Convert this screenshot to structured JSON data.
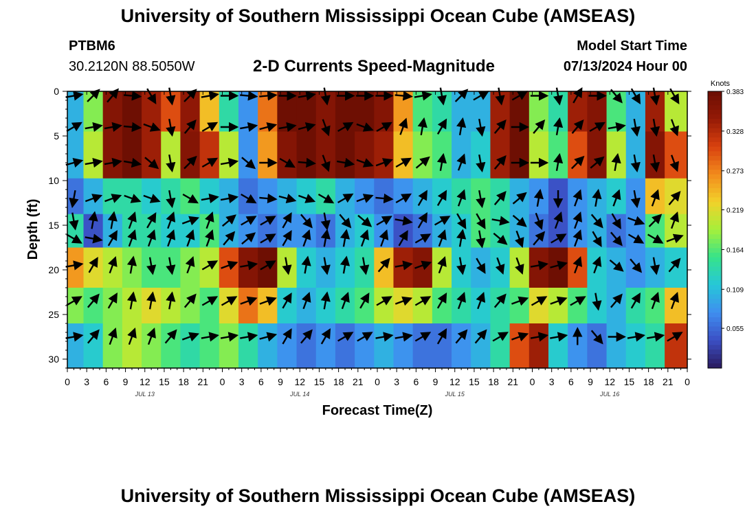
{
  "header": {
    "title": "University of Southern Mississippi Ocean Cube (AMSEAS)",
    "station_id": "PTBM6",
    "station_coords": "30.2120N  88.5050W",
    "subtitle": "2-D Currents Speed-Magnitude",
    "model_start_label": "Model Start Time",
    "model_start_value": "07/13/2024 Hour 00"
  },
  "footer": {
    "title": "University of Southern Mississippi Ocean Cube (AMSEAS)"
  },
  "chart_data": {
    "type": "heatmap",
    "title": "2-D Currents Speed-Magnitude",
    "xlabel": "Forecast Time(Z)",
    "ylabel": "Depth (ft)",
    "x_range_hours": [
      0,
      96
    ],
    "ylim": [
      0,
      31
    ],
    "y_inverted": true,
    "x_tick_labels": [
      "0",
      "3",
      "6",
      "9",
      "12",
      "15",
      "18",
      "21",
      "0",
      "3",
      "6",
      "9",
      "12",
      "15",
      "18",
      "21",
      "0",
      "3",
      "6",
      "9",
      "12",
      "15",
      "18",
      "21",
      "0",
      "3",
      "6",
      "9",
      "12",
      "15",
      "18",
      "21",
      "0"
    ],
    "y_ticks": [
      0,
      5,
      10,
      15,
      20,
      25,
      30
    ],
    "date_labels": [
      {
        "hour": 12,
        "text": "JUL 13"
      },
      {
        "hour": 36,
        "text": "JUL 14"
      },
      {
        "hour": 60,
        "text": "JUL 15"
      },
      {
        "hour": 84,
        "text": "JUL 16"
      }
    ],
    "colorbar": {
      "units": "Knots",
      "ticks": [
        "0.383",
        "0.328",
        "0.273",
        "0.219",
        "0.164",
        "0.109",
        "0.055"
      ],
      "min": 0.0,
      "max": 0.383
    },
    "colors": {
      "scale": [
        "#2a1a5e",
        "#3b4fc4",
        "#3f8ef0",
        "#26c7d8",
        "#36e38a",
        "#a6f03a",
        "#f2d12a",
        "#f28a1c",
        "#d9410f",
        "#951a06",
        "#6b0e03"
      ]
    },
    "depth_layers_ft": [
      2,
      7,
      12.5,
      15,
      20,
      24,
      28
    ],
    "time_steps_hours": [
      1,
      4,
      7,
      10,
      13,
      16,
      19,
      22,
      25,
      28,
      31,
      34,
      37,
      40,
      43,
      46,
      49,
      52,
      55,
      58,
      61,
      64,
      67,
      70,
      73,
      76,
      79,
      82,
      85,
      88,
      91,
      94
    ],
    "speed_knots": [
      [
        0.1,
        0.18,
        0.36,
        0.38,
        0.34,
        0.3,
        0.35,
        0.24,
        0.14,
        0.08,
        0.28,
        0.38,
        0.38,
        0.36,
        0.38,
        0.38,
        0.36,
        0.26,
        0.16,
        0.14,
        0.1,
        0.1,
        0.34,
        0.38,
        0.18,
        0.14,
        0.34,
        0.36,
        0.16,
        0.1,
        0.34,
        0.2
      ],
      [
        0.1,
        0.2,
        0.36,
        0.38,
        0.34,
        0.2,
        0.36,
        0.32,
        0.2,
        0.08,
        0.26,
        0.36,
        0.38,
        0.36,
        0.38,
        0.36,
        0.34,
        0.24,
        0.18,
        0.16,
        0.1,
        0.12,
        0.34,
        0.38,
        0.2,
        0.16,
        0.3,
        0.36,
        0.2,
        0.1,
        0.36,
        0.3
      ],
      [
        0.06,
        0.1,
        0.14,
        0.14,
        0.12,
        0.14,
        0.16,
        0.12,
        0.1,
        0.06,
        0.08,
        0.1,
        0.12,
        0.14,
        0.1,
        0.08,
        0.06,
        0.08,
        0.1,
        0.12,
        0.14,
        0.16,
        0.14,
        0.1,
        0.08,
        0.04,
        0.08,
        0.1,
        0.12,
        0.08,
        0.24,
        0.22
      ],
      [
        0.14,
        0.04,
        0.1,
        0.14,
        0.14,
        0.12,
        0.12,
        0.16,
        0.1,
        0.08,
        0.06,
        0.08,
        0.08,
        0.06,
        0.1,
        0.12,
        0.08,
        0.04,
        0.06,
        0.1,
        0.12,
        0.16,
        0.14,
        0.1,
        0.06,
        0.04,
        0.08,
        0.1,
        0.06,
        0.08,
        0.16,
        0.2
      ],
      [
        0.26,
        0.22,
        0.2,
        0.18,
        0.16,
        0.16,
        0.18,
        0.2,
        0.3,
        0.36,
        0.38,
        0.2,
        0.12,
        0.1,
        0.12,
        0.14,
        0.24,
        0.34,
        0.36,
        0.2,
        0.12,
        0.1,
        0.12,
        0.2,
        0.36,
        0.38,
        0.3,
        0.12,
        0.1,
        0.08,
        0.1,
        0.12
      ],
      [
        0.18,
        0.16,
        0.18,
        0.2,
        0.22,
        0.2,
        0.18,
        0.16,
        0.22,
        0.28,
        0.24,
        0.12,
        0.1,
        0.12,
        0.14,
        0.16,
        0.2,
        0.22,
        0.2,
        0.16,
        0.14,
        0.12,
        0.14,
        0.16,
        0.22,
        0.2,
        0.16,
        0.12,
        0.1,
        0.14,
        0.16,
        0.24
      ],
      [
        0.1,
        0.12,
        0.18,
        0.2,
        0.18,
        0.16,
        0.14,
        0.16,
        0.18,
        0.14,
        0.1,
        0.08,
        0.06,
        0.08,
        0.06,
        0.08,
        0.1,
        0.08,
        0.06,
        0.06,
        0.08,
        0.1,
        0.14,
        0.3,
        0.34,
        0.12,
        0.08,
        0.06,
        0.1,
        0.12,
        0.14,
        0.32
      ]
    ],
    "arrows": {
      "depths_ft": [
        0.5,
        4,
        8,
        12,
        14.5,
        16.5,
        19.5,
        23.5,
        27.5
      ],
      "time_steps_hours": [
        1,
        4,
        7,
        10,
        13,
        16,
        19,
        22,
        25,
        28,
        31,
        34,
        37,
        40,
        43,
        46,
        49,
        52,
        55,
        58,
        61,
        64,
        67,
        70,
        73,
        76,
        79,
        82,
        85,
        88,
        91,
        94
      ],
      "direction_deg": [
        [
          80,
          45,
          40,
          95,
          150,
          170,
          45,
          80,
          90,
          95,
          85,
          90,
          80,
          170,
          90,
          90,
          90,
          95,
          80,
          170,
          45,
          60,
          170,
          60,
          90,
          170,
          30,
          90,
          140,
          150,
          170,
          150
        ],
        [
          60,
          80,
          80,
          95,
          110,
          170,
          40,
          60,
          90,
          80,
          75,
          80,
          75,
          160,
          60,
          110,
          60,
          20,
          10,
          30,
          10,
          170,
          40,
          90,
          40,
          10,
          40,
          60,
          80,
          170,
          170,
          160
        ],
        [
          75,
          80,
          80,
          100,
          130,
          170,
          45,
          60,
          80,
          130,
          90,
          120,
          95,
          160,
          100,
          110,
          70,
          60,
          50,
          10,
          20,
          170,
          40,
          90,
          90,
          10,
          45,
          50,
          10,
          170,
          170,
          160
        ],
        [
          190,
          70,
          70,
          110,
          110,
          170,
          120,
          80,
          80,
          120,
          95,
          105,
          110,
          120,
          60,
          70,
          95,
          60,
          30,
          30,
          20,
          170,
          40,
          50,
          10,
          180,
          20,
          10,
          20,
          170,
          20,
          40
        ],
        [
          170,
          10,
          10,
          20,
          30,
          20,
          70,
          20,
          50,
          60,
          60,
          30,
          140,
          170,
          140,
          130,
          60,
          100,
          30,
          60,
          150,
          150,
          100,
          130,
          160,
          20,
          20,
          140,
          150,
          110,
          45,
          20
        ],
        [
          120,
          100,
          30,
          20,
          20,
          20,
          20,
          20,
          40,
          50,
          60,
          30,
          20,
          10,
          10,
          20,
          20,
          30,
          60,
          20,
          10,
          170,
          130,
          160,
          40,
          60,
          20,
          150,
          140,
          120,
          120,
          70
        ],
        [
          80,
          30,
          20,
          10,
          170,
          170,
          20,
          60,
          70,
          80,
          60,
          170,
          10,
          170,
          10,
          170,
          40,
          80,
          70,
          20,
          170,
          150,
          160,
          160,
          80,
          75,
          20,
          20,
          130,
          140,
          170,
          40
        ],
        [
          60,
          40,
          30,
          10,
          10,
          10,
          40,
          60,
          60,
          70,
          70,
          30,
          20,
          10,
          20,
          30,
          60,
          70,
          60,
          30,
          20,
          20,
          40,
          70,
          60,
          70,
          60,
          170,
          40,
          30,
          20,
          20
        ],
        [
          80,
          40,
          20,
          20,
          20,
          40,
          70,
          80,
          80,
          80,
          75,
          30,
          40,
          30,
          60,
          60,
          80,
          80,
          60,
          30,
          40,
          40,
          60,
          70,
          80,
          80,
          0,
          140,
          90,
          80,
          80,
          60
        ]
      ]
    }
  }
}
